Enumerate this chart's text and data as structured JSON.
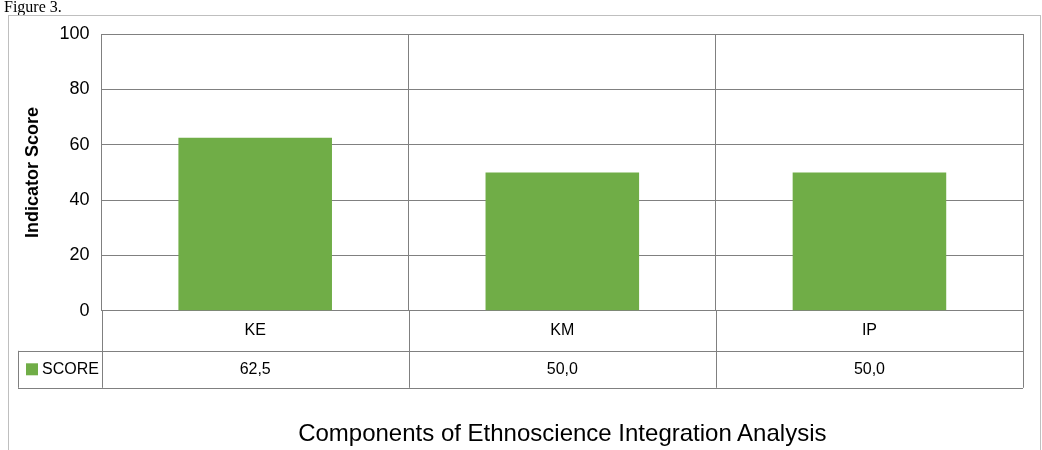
{
  "chart_data": {
    "type": "bar",
    "xlabel": "Components of Ethnoscience Integration Analysis",
    "ylabel": "Indicator Score",
    "annotations": [
      "Figure 3."
    ],
    "categories": [
      "KE",
      "KM",
      "IP"
    ],
    "series": [
      {
        "name": "SCORE",
        "color": "#70ad47",
        "values": [
          62.5,
          50.0,
          50.0
        ],
        "value_labels": [
          "62,5",
          "50,0",
          "50,0"
        ]
      }
    ],
    "ylim": [
      0,
      100
    ],
    "yticks": [
      0,
      20,
      40,
      60,
      80,
      100
    ],
    "grid": true,
    "legend": "bottom"
  }
}
